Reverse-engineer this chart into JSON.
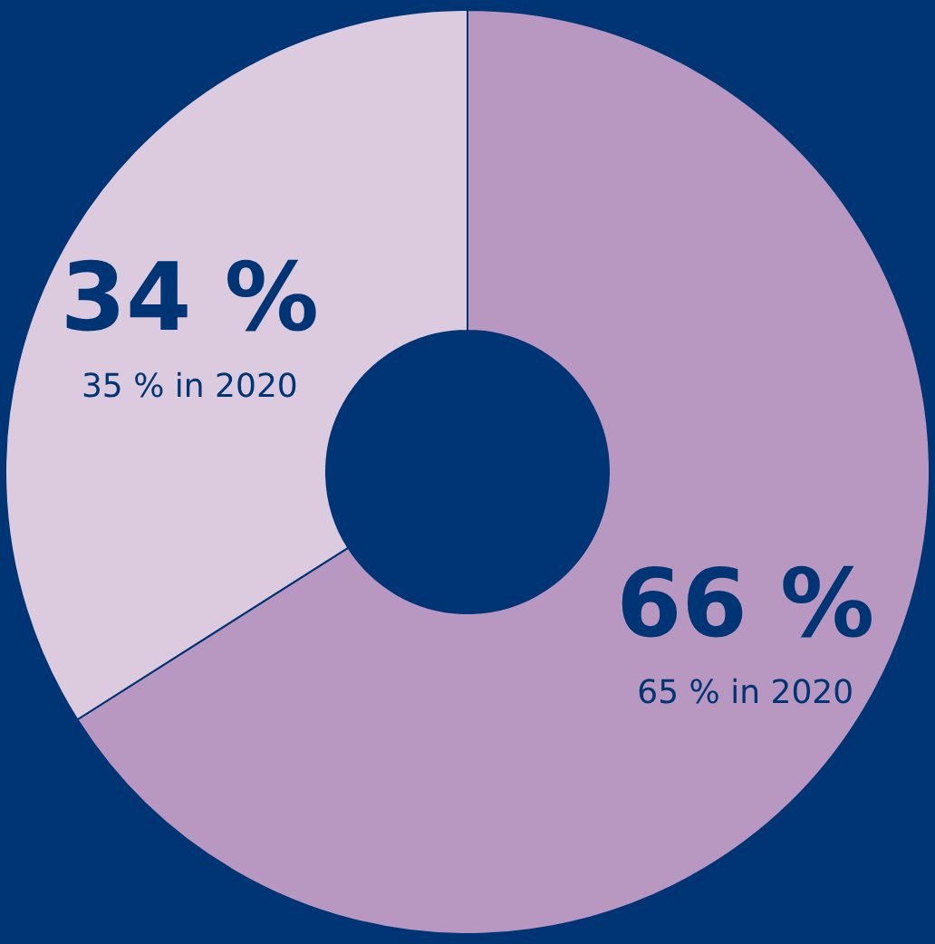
{
  "chart_data": {
    "type": "donut",
    "categories": [
      null,
      null
    ],
    "values": [
      66,
      34
    ],
    "colors": [
      "#b897c0",
      "#dccbdf"
    ],
    "value_labels": [
      "66 %",
      "34 %"
    ],
    "annotations": [
      "65 % in 2020",
      "35 % in 2020"
    ]
  }
}
